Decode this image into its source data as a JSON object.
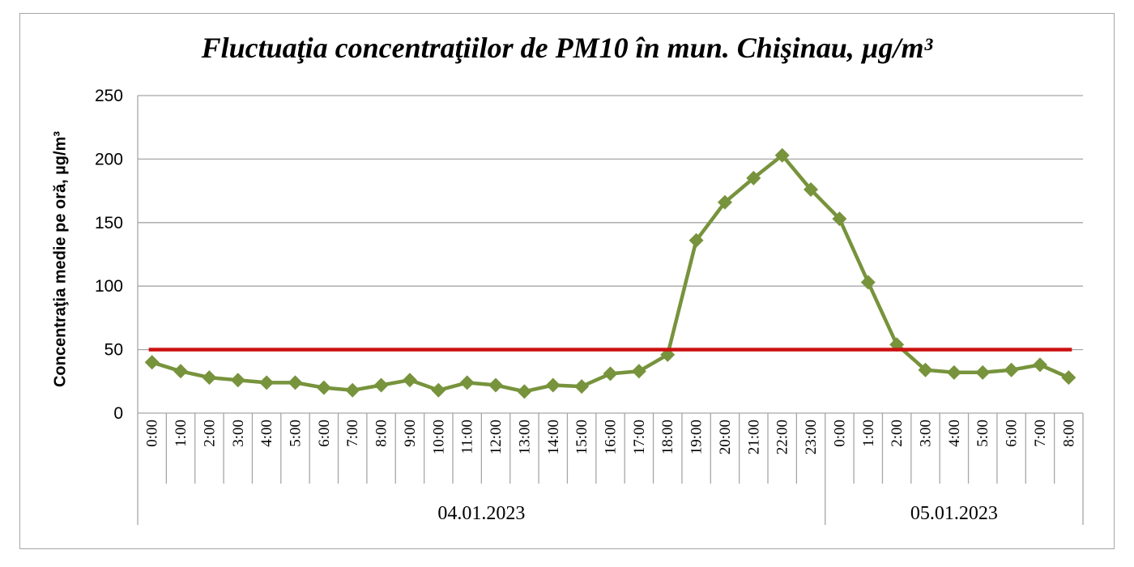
{
  "chart_data": {
    "type": "line",
    "title": "Fluctuaţia concentraţiilor de PM10 în mun. Chişinau, µg/m³",
    "ylabel": "Concentraţia medie pe oră, µg/m³",
    "xlabel": "",
    "ylim": [
      0,
      250
    ],
    "yticks": [
      0,
      50,
      100,
      150,
      200,
      250
    ],
    "grid": true,
    "categories": [
      "0:00",
      "1:00",
      "2:00",
      "3:00",
      "4:00",
      "5:00",
      "6:00",
      "7:00",
      "8:00",
      "9:00",
      "10:00",
      "11:00",
      "12:00",
      "13:00",
      "14:00",
      "15:00",
      "16:00",
      "17:00",
      "18:00",
      "19:00",
      "20:00",
      "21:00",
      "22:00",
      "23:00",
      "0:00",
      "1:00",
      "2:00",
      "3:00",
      "4:00",
      "5:00",
      "6:00",
      "7:00",
      "8:00"
    ],
    "groups": [
      {
        "label": "04.01.2023",
        "start": 0,
        "end": 23
      },
      {
        "label": "05.01.2023",
        "start": 24,
        "end": 32
      }
    ],
    "series": [
      {
        "values": [
          40,
          33,
          28,
          26,
          24,
          24,
          20,
          18,
          22,
          26,
          18,
          24,
          22,
          17,
          22,
          21,
          31,
          33,
          46,
          136,
          166,
          185,
          203,
          176,
          153,
          103,
          54,
          34,
          32,
          32,
          34,
          38,
          28
        ],
        "color": "#77933c",
        "marker": "diamond"
      },
      {
        "values": [
          50,
          50,
          50,
          50,
          50,
          50,
          50,
          50,
          50,
          50,
          50,
          50,
          50,
          50,
          50,
          50,
          50,
          50,
          50,
          50,
          50,
          50,
          50,
          50,
          50,
          50,
          50,
          50,
          50,
          50,
          50,
          50,
          50
        ],
        "color": "#cc1111",
        "marker": "none"
      }
    ]
  }
}
